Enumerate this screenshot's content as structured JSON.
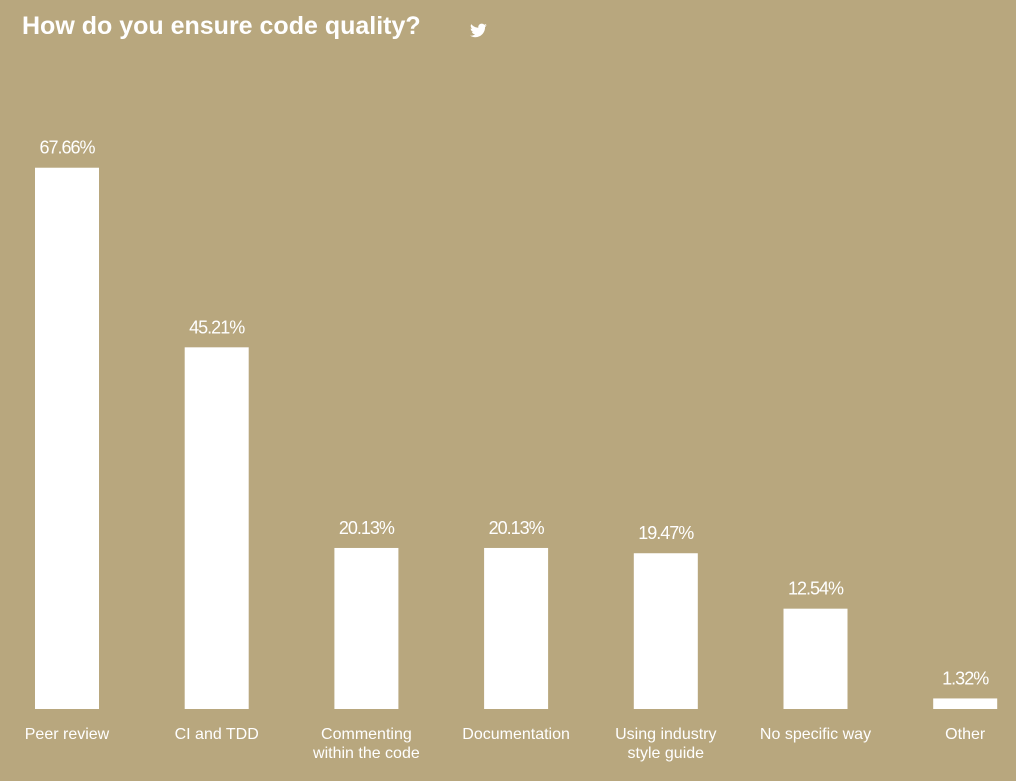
{
  "chart_data": {
    "type": "bar",
    "title": "How do you ensure code quality?",
    "categories": [
      "Peer review",
      "CI and TDD",
      "Commenting within the code",
      "Documentation",
      "Using industry style guide",
      "No specific way",
      "Other"
    ],
    "values": [
      67.66,
      45.21,
      20.13,
      20.13,
      19.47,
      12.54,
      1.32
    ],
    "value_labels": [
      "67.66%",
      "45.21%",
      "20.13%",
      "20.13%",
      "19.47%",
      "12.54%",
      "1.32%"
    ],
    "color": "#ffffff"
  }
}
